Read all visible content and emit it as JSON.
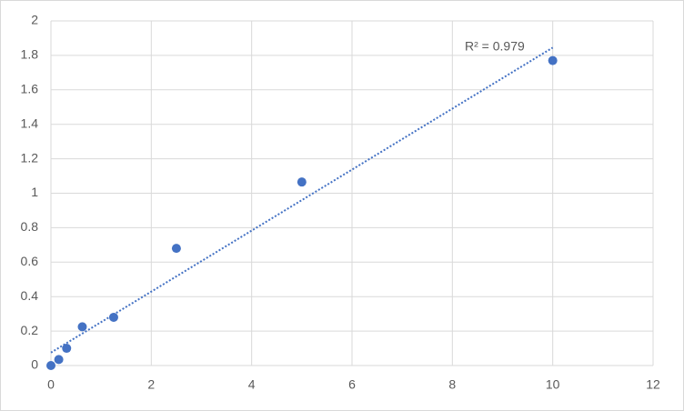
{
  "chart_data": {
    "type": "scatter",
    "series": [
      {
        "name": "Series1",
        "color": "#4472c4",
        "x": [
          0,
          0.156,
          0.3125,
          0.625,
          1.25,
          2.5,
          5,
          10
        ],
        "values": [
          0,
          0.035,
          0.1,
          0.225,
          0.28,
          0.68,
          1.065,
          1.77
        ]
      }
    ],
    "trendline": {
      "color": "#4472c4",
      "x": [
        0,
        10
      ],
      "values": [
        0.075,
        1.845
      ]
    },
    "annotation": "R² = 0.979",
    "xlim": [
      0,
      12
    ],
    "xticks": [
      0,
      2,
      4,
      6,
      8,
      10,
      12
    ],
    "ylim": [
      0,
      2
    ],
    "yticks": [
      0,
      0.2,
      0.4,
      0.6,
      0.8,
      1,
      1.2,
      1.4,
      1.6,
      1.8,
      2
    ],
    "grid": true
  }
}
